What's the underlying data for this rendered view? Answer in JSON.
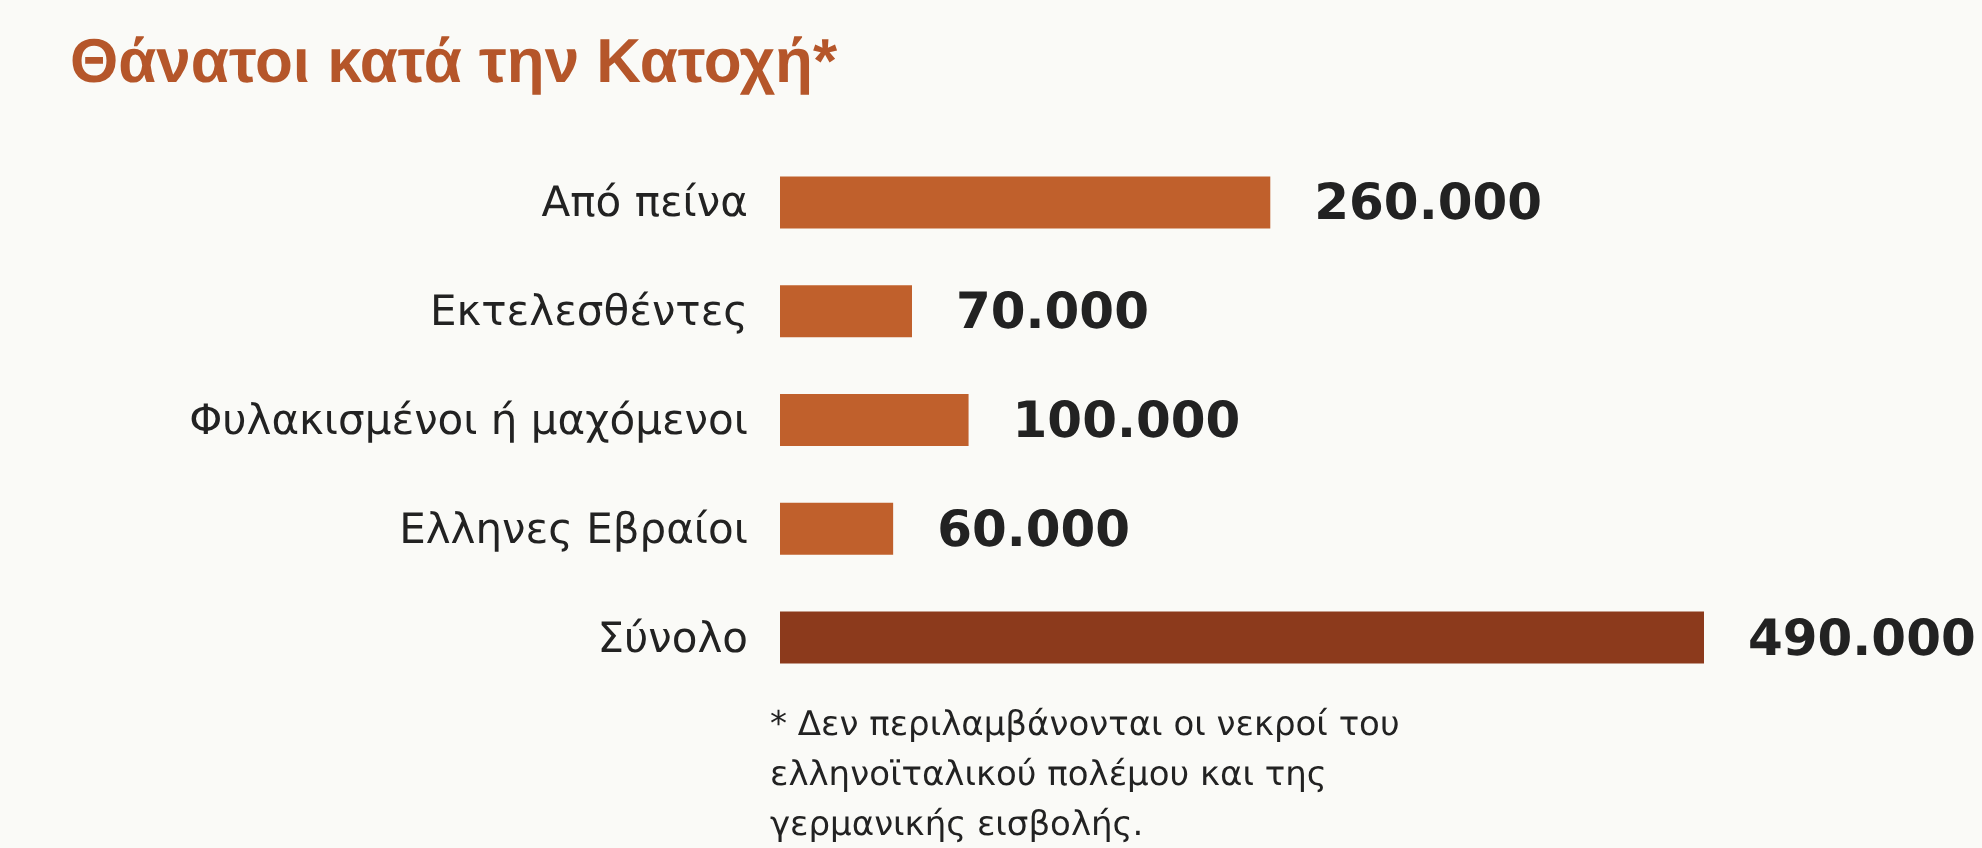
{
  "chart_data": {
    "type": "bar",
    "orientation": "horizontal",
    "title": "Θάνατοι κατά την Κατοχή*",
    "categories": [
      "Από πείνα",
      "Εκτελεσθέντες",
      "Φυλακισμένοι ή μαχόμενοι",
      "Ελληνες Εβραίοι",
      "Σύνολο"
    ],
    "values": [
      260000,
      70000,
      100000,
      60000,
      490000
    ],
    "colors": [
      "#c0602c",
      "#c0602c",
      "#c0602c",
      "#c0602c",
      "#8c3a1c"
    ],
    "value_labels": [
      "260.000",
      "70.000",
      "100.000",
      "60.000",
      "490.000"
    ],
    "annotations": [
      "* Δεν περιλαμβάνονται οι νεκροί του ελληνοϊταλικού πολέμου και της γερμανικής εισβολής."
    ]
  }
}
